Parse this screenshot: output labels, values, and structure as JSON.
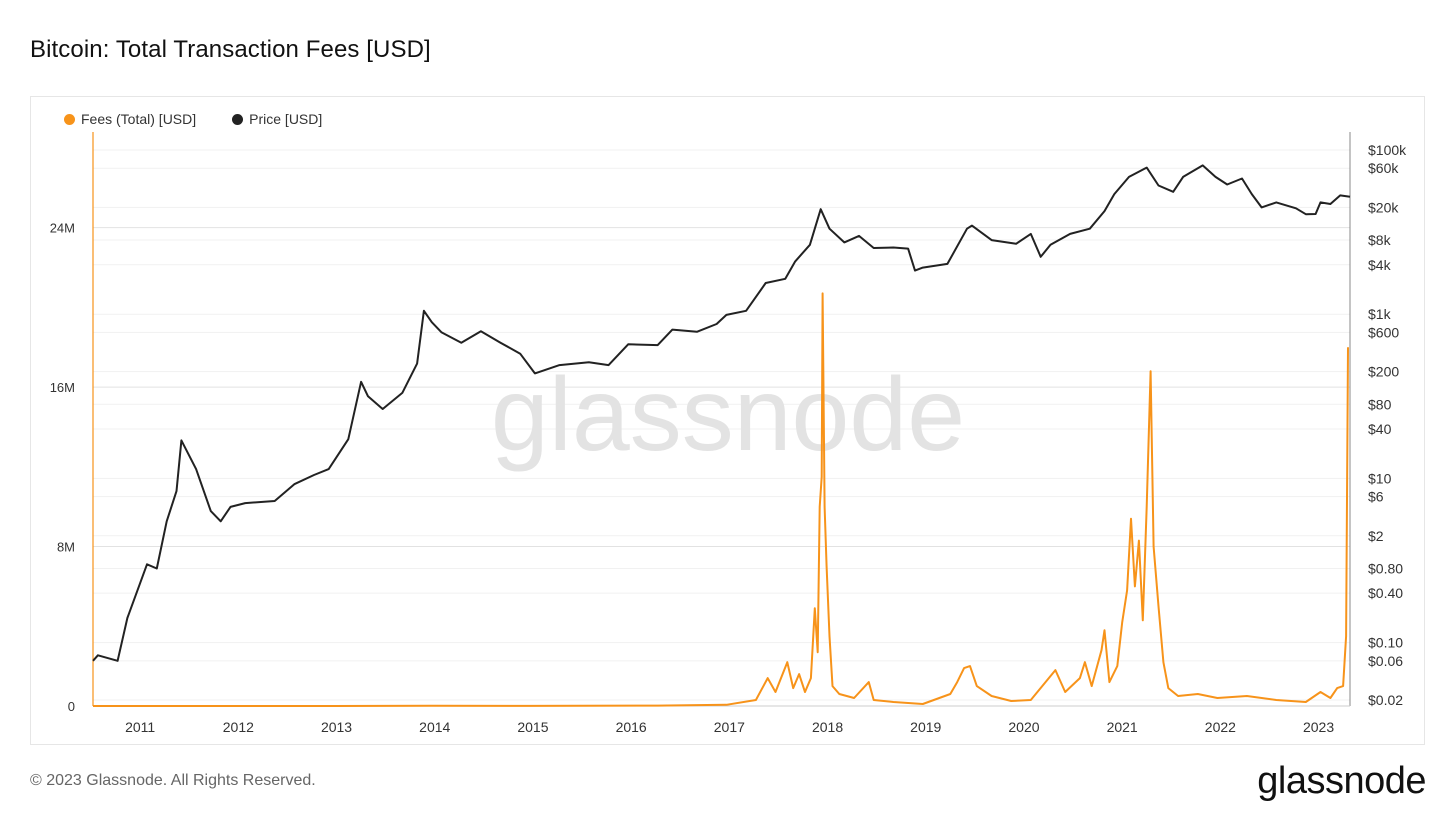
{
  "header": {
    "title": "Bitcoin: Total Transaction Fees [USD]"
  },
  "watermark": "glassnode",
  "footer": {
    "copyright": "© 2023 Glassnode. All Rights Reserved.",
    "brand": "glassnode"
  },
  "colors": {
    "fees": "#f7931a",
    "price": "#222222",
    "grid": "#ececec",
    "axis_text": "#333333"
  },
  "chart_data": {
    "type": "line",
    "title": "Bitcoin: Total Transaction Fees [USD]",
    "legend_position": "top-left",
    "grid": true,
    "x_ticks": [
      "2011",
      "2012",
      "2013",
      "2014",
      "2015",
      "2016",
      "2017",
      "2018",
      "2019",
      "2020",
      "2021",
      "2022",
      "2023"
    ],
    "x_range": [
      2010.55,
      2023.35
    ],
    "y_left": {
      "ticks": [
        "0",
        "8M",
        "16M",
        "24M"
      ],
      "range": [
        0,
        28800000
      ]
    },
    "y_right": {
      "scale": "log",
      "ticks": [
        "$100k",
        "$60k",
        "$20k",
        "$8k",
        "$4k",
        "$1k",
        "$600",
        "$200",
        "$80",
        "$40",
        "$10",
        "$6",
        "$2",
        "$0.80",
        "$0.40",
        "$0.10",
        "$0.06",
        "$0.02"
      ],
      "tick_values": [
        100000,
        60000,
        20000,
        8000,
        4000,
        1000,
        600,
        200,
        80,
        40,
        10,
        6,
        2,
        0.8,
        0.4,
        0.1,
        0.06,
        0.02
      ]
    },
    "series": [
      {
        "name": "Fees (Total) [USD]",
        "axis": "left",
        "points": [
          [
            2010.55,
            0
          ],
          [
            2013.0,
            1000
          ],
          [
            2014.0,
            10000
          ],
          [
            2015.0,
            5000
          ],
          [
            2016.3,
            20000
          ],
          [
            2017.0,
            60000
          ],
          [
            2017.3,
            300000
          ],
          [
            2017.42,
            1400000
          ],
          [
            2017.5,
            700000
          ],
          [
            2017.62,
            2200000
          ],
          [
            2017.68,
            900000
          ],
          [
            2017.74,
            1600000
          ],
          [
            2017.8,
            700000
          ],
          [
            2017.86,
            1400000
          ],
          [
            2017.9,
            4900000
          ],
          [
            2017.93,
            2700000
          ],
          [
            2017.95,
            10000000
          ],
          [
            2017.97,
            11500000
          ],
          [
            2017.98,
            20700000
          ],
          [
            2018.0,
            10000000
          ],
          [
            2018.02,
            7000000
          ],
          [
            2018.05,
            3500000
          ],
          [
            2018.08,
            1000000
          ],
          [
            2018.15,
            600000
          ],
          [
            2018.3,
            400000
          ],
          [
            2018.45,
            1200000
          ],
          [
            2018.5,
            300000
          ],
          [
            2018.7,
            200000
          ],
          [
            2019.0,
            100000
          ],
          [
            2019.28,
            600000
          ],
          [
            2019.35,
            1200000
          ],
          [
            2019.42,
            1900000
          ],
          [
            2019.48,
            2000000
          ],
          [
            2019.55,
            1000000
          ],
          [
            2019.7,
            500000
          ],
          [
            2019.9,
            250000
          ],
          [
            2020.1,
            300000
          ],
          [
            2020.35,
            1800000
          ],
          [
            2020.45,
            700000
          ],
          [
            2020.6,
            1400000
          ],
          [
            2020.65,
            2200000
          ],
          [
            2020.72,
            1000000
          ],
          [
            2020.82,
            2800000
          ],
          [
            2020.85,
            3800000
          ],
          [
            2020.9,
            1200000
          ],
          [
            2020.98,
            2000000
          ],
          [
            2021.03,
            4200000
          ],
          [
            2021.08,
            5800000
          ],
          [
            2021.12,
            9400000
          ],
          [
            2021.16,
            6000000
          ],
          [
            2021.2,
            8300000
          ],
          [
            2021.24,
            4300000
          ],
          [
            2021.28,
            10000000
          ],
          [
            2021.32,
            16800000
          ],
          [
            2021.35,
            8000000
          ],
          [
            2021.4,
            5000000
          ],
          [
            2021.45,
            2200000
          ],
          [
            2021.5,
            900000
          ],
          [
            2021.6,
            500000
          ],
          [
            2021.8,
            600000
          ],
          [
            2022.0,
            400000
          ],
          [
            2022.3,
            500000
          ],
          [
            2022.6,
            300000
          ],
          [
            2022.9,
            200000
          ],
          [
            2023.05,
            700000
          ],
          [
            2023.15,
            400000
          ],
          [
            2023.22,
            900000
          ],
          [
            2023.28,
            1000000
          ],
          [
            2023.31,
            3500000
          ],
          [
            2023.33,
            18000000
          ]
        ]
      },
      {
        "name": "Price [USD]",
        "axis": "right",
        "points": [
          [
            2010.55,
            0.06
          ],
          [
            2010.6,
            0.07
          ],
          [
            2010.8,
            0.06
          ],
          [
            2010.9,
            0.2
          ],
          [
            2011.1,
            0.9
          ],
          [
            2011.2,
            0.8
          ],
          [
            2011.3,
            3
          ],
          [
            2011.4,
            7
          ],
          [
            2011.45,
            29
          ],
          [
            2011.6,
            13
          ],
          [
            2011.75,
            4
          ],
          [
            2011.85,
            3
          ],
          [
            2011.95,
            4.5
          ],
          [
            2012.1,
            5
          ],
          [
            2012.4,
            5.3
          ],
          [
            2012.6,
            8.5
          ],
          [
            2012.8,
            11
          ],
          [
            2012.95,
            13
          ],
          [
            2013.15,
            30
          ],
          [
            2013.28,
            150
          ],
          [
            2013.35,
            100
          ],
          [
            2013.5,
            70
          ],
          [
            2013.7,
            110
          ],
          [
            2013.85,
            250
          ],
          [
            2013.92,
            1100
          ],
          [
            2014.0,
            800
          ],
          [
            2014.1,
            600
          ],
          [
            2014.3,
            450
          ],
          [
            2014.5,
            620
          ],
          [
            2014.7,
            450
          ],
          [
            2014.9,
            330
          ],
          [
            2015.05,
            190
          ],
          [
            2015.3,
            240
          ],
          [
            2015.6,
            260
          ],
          [
            2015.8,
            240
          ],
          [
            2016.0,
            430
          ],
          [
            2016.3,
            420
          ],
          [
            2016.45,
            650
          ],
          [
            2016.7,
            610
          ],
          [
            2016.9,
            760
          ],
          [
            2017.0,
            980
          ],
          [
            2017.2,
            1100
          ],
          [
            2017.4,
            2400
          ],
          [
            2017.6,
            2700
          ],
          [
            2017.7,
            4400
          ],
          [
            2017.85,
            7000
          ],
          [
            2017.96,
            19000
          ],
          [
            2018.05,
            11000
          ],
          [
            2018.2,
            7500
          ],
          [
            2018.35,
            9000
          ],
          [
            2018.5,
            6400
          ],
          [
            2018.7,
            6500
          ],
          [
            2018.85,
            6300
          ],
          [
            2018.92,
            3400
          ],
          [
            2019.0,
            3700
          ],
          [
            2019.25,
            4100
          ],
          [
            2019.45,
            11000
          ],
          [
            2019.5,
            12000
          ],
          [
            2019.7,
            8000
          ],
          [
            2019.95,
            7200
          ],
          [
            2020.1,
            9500
          ],
          [
            2020.2,
            5000
          ],
          [
            2020.3,
            7000
          ],
          [
            2020.5,
            9500
          ],
          [
            2020.7,
            11000
          ],
          [
            2020.85,
            18000
          ],
          [
            2020.95,
            29000
          ],
          [
            2021.1,
            47000
          ],
          [
            2021.28,
            61000
          ],
          [
            2021.4,
            37000
          ],
          [
            2021.55,
            31000
          ],
          [
            2021.65,
            47000
          ],
          [
            2021.85,
            65000
          ],
          [
            2021.98,
            47000
          ],
          [
            2022.1,
            38000
          ],
          [
            2022.25,
            45000
          ],
          [
            2022.35,
            29000
          ],
          [
            2022.45,
            20000
          ],
          [
            2022.6,
            23000
          ],
          [
            2022.8,
            19500
          ],
          [
            2022.9,
            16500
          ],
          [
            2023.0,
            16600
          ],
          [
            2023.05,
            23000
          ],
          [
            2023.15,
            22000
          ],
          [
            2023.25,
            28000
          ],
          [
            2023.35,
            27000
          ]
        ]
      }
    ]
  }
}
